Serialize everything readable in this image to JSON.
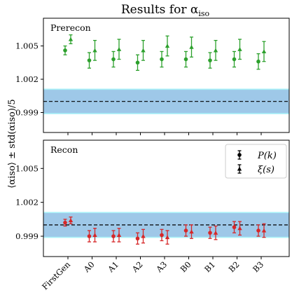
{
  "chart_data": {
    "type": "scatter",
    "title": "Results for α",
    "title_subscript": "iso",
    "ylabel": "⟨αiso⟩ ± std(αiso)/5",
    "categories": [
      "FirstGen",
      "A0",
      "A1",
      "A2",
      "A3",
      "B0",
      "B1",
      "B2",
      "B3"
    ],
    "ylim": [
      0.9972,
      1.0075
    ],
    "yticks": [
      "0.999",
      "1.002",
      "1.005"
    ],
    "ytick_values": [
      0.999,
      1.002,
      1.005
    ],
    "reference_line": 1.0,
    "band": [
      0.9989,
      1.0011
    ],
    "colors": {
      "prerecon": "#2ca02c",
      "recon": "#d62728",
      "band_fill": "#9ec8e8",
      "band_edge": "#a8f0f8",
      "reference_line": "#000000"
    },
    "panels": [
      {
        "label": "Prerecon",
        "color": "#2ca02c",
        "series": [
          {
            "name": "P(k)",
            "marker": "circle",
            "values": [
              1.0046,
              1.0037,
              1.0038,
              1.0035,
              1.0038,
              1.0038,
              1.0037,
              1.0038,
              1.0036
            ],
            "errors": [
              0.0004,
              0.0007,
              0.0007,
              0.0007,
              0.0007,
              0.0007,
              0.0007,
              0.0007,
              0.0007
            ]
          },
          {
            "name": "ξ(s)",
            "marker": "triangle",
            "values": [
              1.0056,
              1.0046,
              1.0047,
              1.0046,
              1.005,
              1.0049,
              1.0046,
              1.0047,
              1.0045
            ],
            "errors": [
              0.0004,
              0.0009,
              0.0009,
              0.0009,
              0.0009,
              0.0009,
              0.0009,
              0.0009,
              0.0009
            ]
          }
        ]
      },
      {
        "label": "Recon",
        "color": "#d62728",
        "series": [
          {
            "name": "P(k)",
            "marker": "circle",
            "values": [
              1.0002,
              0.999,
              0.999,
              0.9988,
              0.9991,
              0.9995,
              0.9993,
              0.9998,
              0.9995
            ],
            "errors": [
              0.0003,
              0.0005,
              0.0005,
              0.0005,
              0.0005,
              0.0005,
              0.0005,
              0.0005,
              0.0005
            ]
          },
          {
            "name": "ξ(s)",
            "marker": "triangle",
            "values": [
              1.0004,
              0.9991,
              0.9991,
              0.999,
              0.9989,
              0.9994,
              0.9993,
              0.9997,
              0.9995
            ],
            "errors": [
              0.0003,
              0.0006,
              0.0006,
              0.0006,
              0.0006,
              0.0006,
              0.0006,
              0.0006,
              0.0006
            ]
          }
        ]
      }
    ],
    "legend": {
      "placement": "top-right",
      "panel": "Recon",
      "entries": [
        {
          "name": "P(k)",
          "marker": "circle"
        },
        {
          "name": "ξ(s)",
          "marker": "triangle"
        }
      ]
    }
  }
}
